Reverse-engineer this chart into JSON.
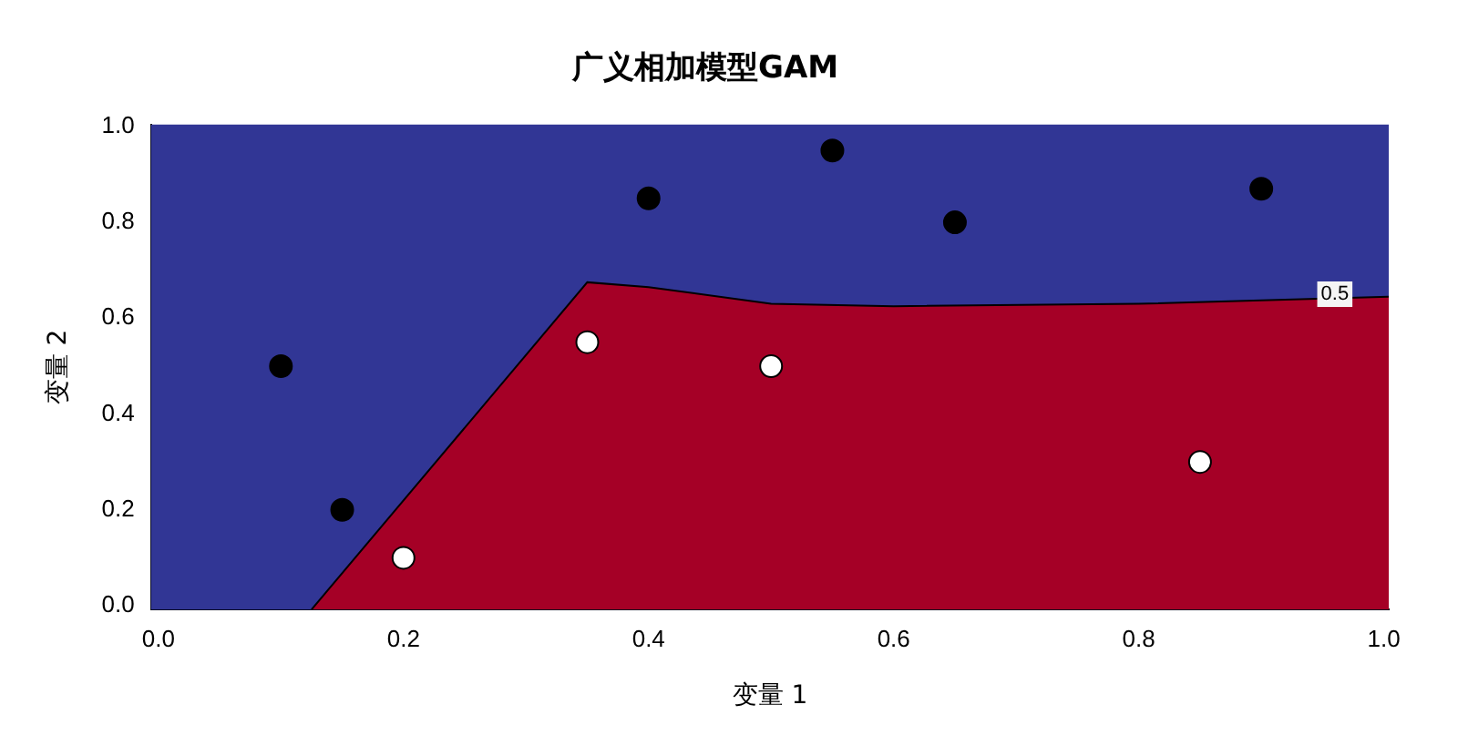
{
  "chart_data": {
    "type": "scatter",
    "title": "广义相加模型GAM",
    "xlabel": "变量 1",
    "ylabel": "变量 2",
    "xlim": [
      -0.006,
      1.004
    ],
    "ylim": [
      -0.008,
      1.004
    ],
    "xticks": [
      {
        "value": 0,
        "label": "0.0"
      },
      0.2,
      0.4,
      0.6,
      0.8,
      {
        "value": 1,
        "label": "1.0"
      }
    ],
    "yticks": [
      {
        "value": 0,
        "label": "0.0"
      },
      0.2,
      0.4,
      0.6,
      0.8,
      {
        "value": 1,
        "label": "1.0"
      }
    ],
    "grid": false,
    "legend": false,
    "marker": "circle",
    "series": [
      {
        "type": "area",
        "marker": "none",
        "color": "#a50026",
        "x": [
          0.125,
          0.35,
          0.4,
          0.5,
          0.6,
          0.8,
          1.004
        ],
        "values": [
          -0.008,
          0.675,
          0.665,
          0.63,
          0.625,
          0.63,
          0.645
        ]
      },
      {
        "type": "scatter",
        "color": "#000000",
        "x": [
          0.1,
          0.15,
          0.4,
          0.55,
          0.65,
          0.9
        ],
        "values": [
          0.5,
          0.2,
          0.85,
          0.95,
          0.8,
          0.87
        ]
      },
      {
        "type": "scatter",
        "color": "#ffffff",
        "x": [
          0.2,
          0.35,
          0.5,
          0.85
        ],
        "values": [
          0.1,
          0.55,
          0.5,
          0.3
        ]
      }
    ],
    "bands": [
      {
        "axis": "y",
        "from": -0.008,
        "to": 1.004,
        "color": "#313695"
      }
    ],
    "annotations": [
      {
        "text": "0.5",
        "x": 0.96,
        "y": 0.65
      }
    ]
  }
}
